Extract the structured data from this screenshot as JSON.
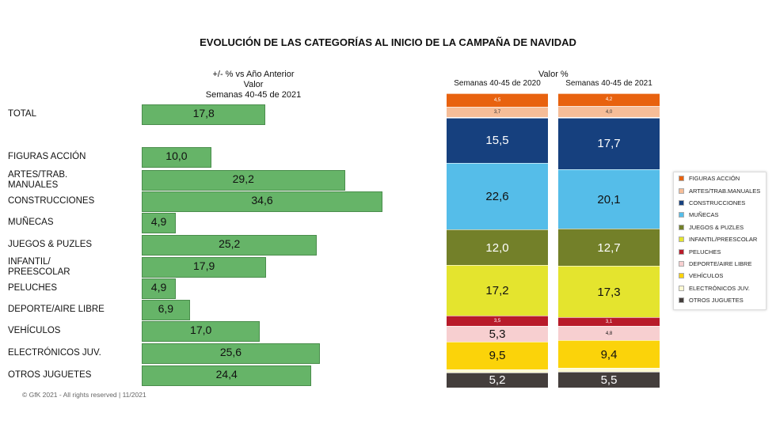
{
  "chart_data": [
    {
      "type": "bar",
      "orientation": "horizontal",
      "title": "EVOLUCIÓN DE LAS CATEGORÍAS AL INICIO DE LA CAMPAÑA DE NAVIDAD",
      "subtitle": [
        "+/- % vs Año Anterior",
        "Valor",
        "Semanas 40-45 de 2021"
      ],
      "categories": [
        "TOTAL",
        "FIGURAS ACCIÓN",
        "ARTES/TRAB. MANUALES",
        "CONSTRUCCIONES",
        "MUÑECAS",
        "JUEGOS & PUZLES",
        "INFANTIL/ PREESCOLAR",
        "PELUCHES",
        "DEPORTE/AIRE LIBRE",
        "VEHÍCULOS",
        "ELECTRÓNICOS JUV.",
        "OTROS JUGUETES"
      ],
      "values": [
        17.8,
        10.0,
        29.2,
        34.6,
        4.9,
        25.2,
        17.9,
        4.9,
        6.9,
        17.0,
        25.6,
        24.4
      ],
      "labels": [
        "17,8",
        "10,0",
        "29,2",
        "34,6",
        "4,9",
        "25,2",
        "17,9",
        "4,9",
        "6,9",
        "17,0",
        "25,6",
        "24,4"
      ],
      "color": "#66b468"
    },
    {
      "type": "bar",
      "stacked": true,
      "title": "Valor %",
      "categories": [
        "Semanas 40-45 de 2020",
        "Semanas 40-45 de 2021"
      ],
      "legend_position": "right",
      "series": [
        {
          "name": "FIGURAS ACCIÓN",
          "color": "#e8620f",
          "values": [
            4.5,
            4.2
          ],
          "labels": [
            "4,5",
            "4,2"
          ],
          "label_size": "small",
          "label_color": "#fff"
        },
        {
          "name": "ARTES/TRAB.MANUALES",
          "color": "#f6bd98",
          "values": [
            3.7,
            4.0
          ],
          "labels": [
            "3,7",
            "4,0"
          ],
          "label_size": "small",
          "label_color": "#333"
        },
        {
          "name": "CONSTRUCCIONES",
          "color": "#16407e",
          "values": [
            15.5,
            17.7
          ],
          "labels": [
            "15,5",
            "17,7"
          ],
          "label_size": "large",
          "label_color": "#fff"
        },
        {
          "name": "MUÑECAS",
          "color": "#55bde9",
          "values": [
            22.6,
            20.1
          ],
          "labels": [
            "22,6",
            "20,1"
          ],
          "label_size": "large",
          "label_color": "#111"
        },
        {
          "name": "JUEGOS & PUZLES",
          "color": "#738029",
          "values": [
            12.0,
            12.7
          ],
          "labels": [
            "12,0",
            "12,7"
          ],
          "label_size": "large",
          "label_color": "#fff"
        },
        {
          "name": "INFANTIL/PREESCOLAR",
          "color": "#e4e42e",
          "values": [
            17.2,
            17.3
          ],
          "labels": [
            "17,2",
            "17,3"
          ],
          "label_size": "large",
          "label_color": "#111"
        },
        {
          "name": "PELUCHES",
          "color": "#b81b2a",
          "values": [
            3.5,
            3.1
          ],
          "labels": [
            "3,5",
            "3,1"
          ],
          "label_size": "small",
          "label_color": "#fff"
        },
        {
          "name": "DEPORTE/AIRE LIBRE",
          "color": "#f7cfd0",
          "values": [
            5.3,
            4.8
          ],
          "labels": [
            "5,3",
            "4,8"
          ],
          "label_size": [
            "large",
            "small"
          ],
          "label_color": "#111"
        },
        {
          "name": "VEHÍCULOS",
          "color": "#fbd30a",
          "values": [
            9.5,
            9.4
          ],
          "labels": [
            "9,5",
            "9,4"
          ],
          "label_size": "large",
          "label_color": "#111"
        },
        {
          "name": "ELECTRÓNICOS JUV.",
          "color": "#fdf9d3",
          "values": [
            1.0,
            1.2
          ],
          "labels": [
            "",
            ""
          ],
          "label_size": "small",
          "label_color": "#111"
        },
        {
          "name": "OTROS JUGUETES",
          "color": "#443e3c",
          "values": [
            5.2,
            5.5
          ],
          "labels": [
            "5,2",
            "5,5"
          ],
          "label_size": "large",
          "label_color": "#fff"
        }
      ]
    }
  ],
  "footer": "© GfK 2021 - All rights reserved | 11/2021"
}
